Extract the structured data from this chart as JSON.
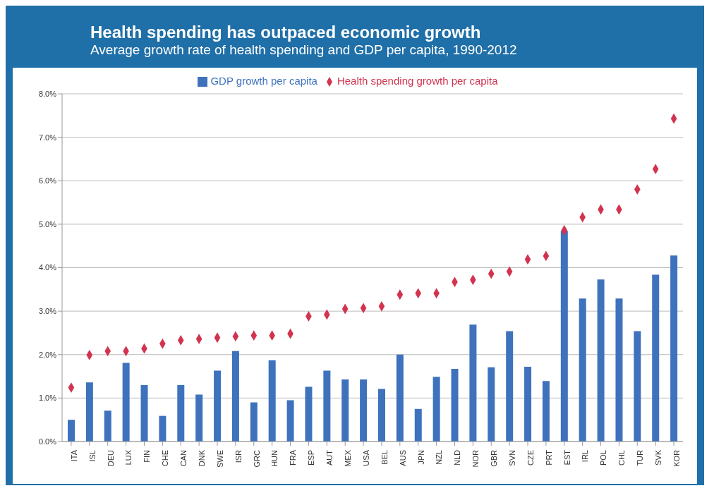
{
  "chart_data": {
    "type": "bar",
    "title": "Health spending has outpaced economic growth",
    "subtitle": "Average growth rate of health spending and GDP per capita, 1990-2012",
    "categories": [
      "ITA",
      "ISL",
      "DEU",
      "LUX",
      "FIN",
      "CHE",
      "CAN",
      "DNK",
      "SWE",
      "ISR",
      "GRC",
      "HUN",
      "FRA",
      "ESP",
      "AUT",
      "MEX",
      "USA",
      "BEL",
      "AUS",
      "JPN",
      "NZL",
      "NLD",
      "NOR",
      "GBR",
      "SVN",
      "CZE",
      "PRT",
      "EST",
      "IRL",
      "POL",
      "CHL",
      "TUR",
      "SVK",
      "KOR"
    ],
    "series": [
      {
        "name": "GDP growth per capita",
        "color": "#3e72bd",
        "values": [
          0.5,
          1.36,
          0.71,
          1.81,
          1.3,
          0.59,
          1.3,
          1.08,
          1.63,
          2.08,
          0.9,
          1.87,
          0.95,
          1.26,
          1.63,
          1.43,
          1.43,
          1.21,
          2.0,
          0.75,
          1.49,
          1.67,
          2.69,
          1.71,
          2.54,
          1.72,
          1.39,
          4.85,
          3.29,
          3.73,
          3.29,
          2.54,
          3.84,
          4.28
        ]
      },
      {
        "name": "Health spending growth per capita",
        "type": "scatter",
        "marker": "diamond",
        "color": "#d2334f",
        "values": [
          1.24,
          1.99,
          2.08,
          2.08,
          2.14,
          2.25,
          2.33,
          2.36,
          2.39,
          2.42,
          2.44,
          2.44,
          2.48,
          2.88,
          2.92,
          3.05,
          3.07,
          3.11,
          3.38,
          3.41,
          3.41,
          3.67,
          3.72,
          3.86,
          3.91,
          4.19,
          4.27,
          4.86,
          5.16,
          5.34,
          5.34,
          5.8,
          6.27,
          7.43
        ]
      }
    ],
    "ylim": [
      0,
      8
    ],
    "yticks": [
      {
        "value": 0,
        "label": "0.0%"
      },
      {
        "value": 1,
        "label": "1.0%"
      },
      {
        "value": 2,
        "label": "2.0%"
      },
      {
        "value": 3,
        "label": "3.0%"
      },
      {
        "value": 4,
        "label": "4.0%"
      },
      {
        "value": 5,
        "label": "5.0%"
      },
      {
        "value": 6,
        "label": "6.0%"
      },
      {
        "value": 7,
        "label": "7.0%"
      },
      {
        "value": 8,
        "label": "8.0%"
      }
    ],
    "grid": "y",
    "legend": "top"
  }
}
